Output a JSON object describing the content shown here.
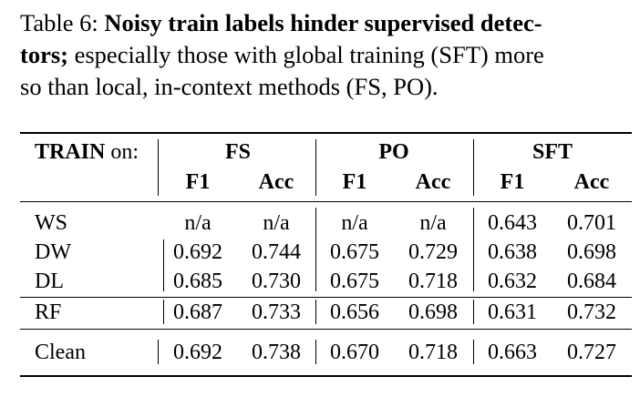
{
  "caption": {
    "prefix": "Table 6:",
    "bold_part1": "Noisy train labels hinder supervised detec-",
    "bold_part2": "tors;",
    "rest_line2": "especially those with global training (SFT) more",
    "line3": "so than local, in-context methods (FS, PO)."
  },
  "table": {
    "train_label_bold": "TRAIN",
    "train_label_rest": "on:",
    "groups": [
      "FS",
      "PO",
      "SFT"
    ],
    "subheaders": [
      "F1",
      "Acc",
      "F1",
      "Acc",
      "F1",
      "Acc"
    ],
    "rows": [
      {
        "label": "WS",
        "values": [
          "n/a",
          "n/a",
          "n/a",
          "n/a",
          "0.643",
          "0.701"
        ]
      },
      {
        "label": "DW",
        "values": [
          "0.692",
          "0.744",
          "0.675",
          "0.729",
          "0.638",
          "0.698"
        ]
      },
      {
        "label": "DL",
        "values": [
          "0.685",
          "0.730",
          "0.675",
          "0.718",
          "0.632",
          "0.684"
        ]
      },
      {
        "label": "RF",
        "values": [
          "0.687",
          "0.733",
          "0.656",
          "0.698",
          "0.631",
          "0.732"
        ]
      },
      {
        "label": "Clean",
        "values": [
          "0.692",
          "0.738",
          "0.670",
          "0.718",
          "0.663",
          "0.727"
        ]
      }
    ]
  }
}
